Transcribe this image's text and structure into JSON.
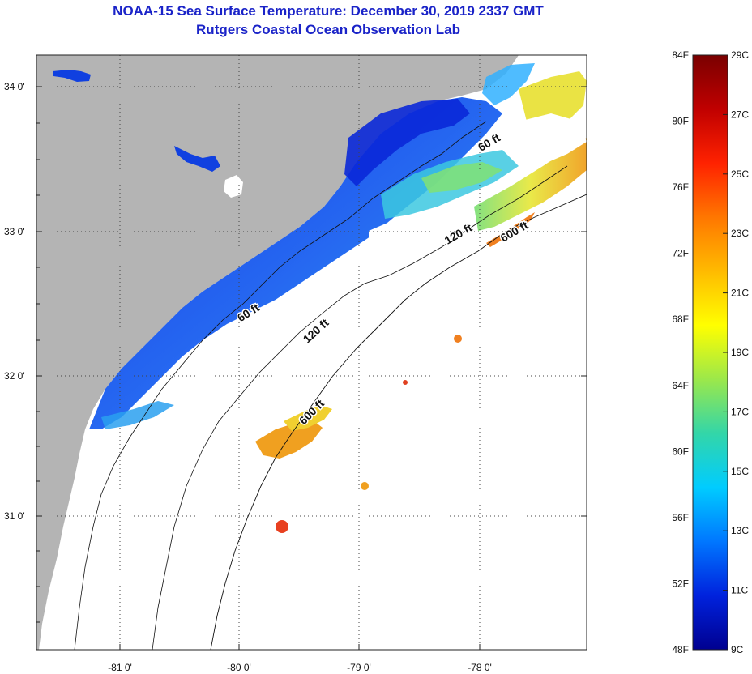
{
  "header": {
    "title": "NOAA-15 Sea Surface Temperature:  December 30, 2019 2337 GMT",
    "subtitle": "Rutgers Coastal Ocean Observation Lab"
  },
  "map": {
    "lon_range": [
      -81.7,
      -77.1
    ],
    "lat_range": [
      30.1,
      34.2
    ],
    "lon_ticks": [
      "-81 0'",
      "-80 0'",
      "-79 0'",
      "-78 0'"
    ],
    "lat_ticks": [
      "34 0'",
      "33 0'",
      "32 0'",
      "31 0'"
    ],
    "contours": [
      {
        "label": "60 ft",
        "instances": 2
      },
      {
        "label": "120 ft",
        "instances": 2
      },
      {
        "label": "600 ft",
        "instances": 2
      }
    ],
    "colors": {
      "land": "#b4b4b4",
      "no_data": "#ffffff",
      "grid": "#444444"
    }
  },
  "colorbar": {
    "fahrenheit_labels": [
      "84F",
      "80F",
      "76F",
      "72F",
      "68F",
      "64F",
      "60F",
      "56F",
      "52F",
      "48F"
    ],
    "celsius_labels": [
      "29C",
      "27C",
      "25C",
      "23C",
      "21C",
      "19C",
      "17C",
      "15C",
      "13C",
      "11C",
      "9C"
    ],
    "gradient": [
      "#7a0000",
      "#c00000",
      "#ff2200",
      "#ff7700",
      "#ffbb00",
      "#ffff00",
      "#9ce84a",
      "#33d6a8",
      "#00ccff",
      "#0077ff",
      "#0022dd",
      "#000090"
    ]
  },
  "labels": {
    "contour_60_a": "60 ft",
    "contour_60_b": "60 ft",
    "contour_120_a": "120 ft",
    "contour_120_b": "120 ft",
    "contour_600_a": "600 ft",
    "contour_600_b": "600 ft"
  }
}
